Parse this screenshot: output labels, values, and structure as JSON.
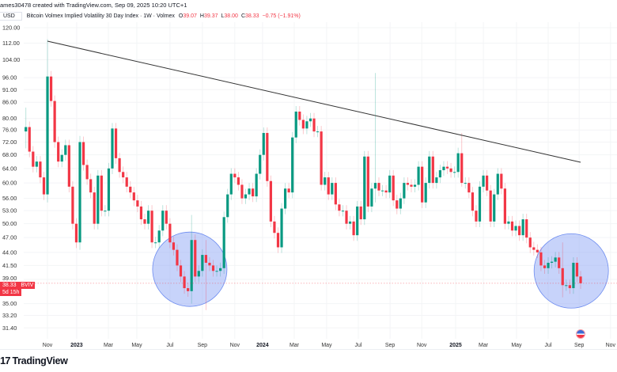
{
  "header": {
    "attribution": "ames30478 created with TradingView.com, Sep 09, 2025 10:20 UTC+1",
    "currency": "USD",
    "symbol_title": "Bitcoin Volmex Implied Volatility 30 Day Index · 1W · Volmex",
    "open_label": "O",
    "open": "39.07",
    "high_label": "H",
    "high": "39.37",
    "low_label": "L",
    "low": "38.00",
    "close_label": "C",
    "close": "38.33",
    "change": "−0.75 (−1.91%)"
  },
  "price_badge": {
    "price": "38.33",
    "ticker": "BVIV",
    "countdown": "5d 15h"
  },
  "footer": {
    "logo_mark": "17",
    "brand": "TradingView"
  },
  "colors": {
    "up": "#089981",
    "down": "#f23645",
    "trendline": "#333333",
    "highlight": "#8fa8f5"
  },
  "chart_data": {
    "type": "candlestick",
    "title": "Bitcoin Volmex Implied Volatility 30 Day Index · 1W · Volmex",
    "yscale": "log",
    "ylim": [
      31.4,
      120
    ],
    "y_ticks": [
      "120.00",
      "112.00",
      "104.00",
      "96.00",
      "91.00",
      "86.00",
      "80.00",
      "76.00",
      "72.00",
      "68.00",
      "64.00",
      "60.00",
      "56.00",
      "53.00",
      "50.00",
      "47.00",
      "44.00",
      "41.50",
      "39.00",
      "35.00",
      "33.20",
      "31.40"
    ],
    "x_ticks": [
      {
        "label": "Nov",
        "index": 6.0,
        "bold": false
      },
      {
        "label": "2023",
        "index": 14.1,
        "bold": true
      },
      {
        "label": "Mar",
        "index": 22.9,
        "bold": false
      },
      {
        "label": "May",
        "index": 30.8,
        "bold": false
      },
      {
        "label": "Jul",
        "index": 40.0,
        "bold": false
      },
      {
        "label": "Sep",
        "index": 49.0,
        "bold": false
      },
      {
        "label": "Nov",
        "index": 58.0,
        "bold": false
      },
      {
        "label": "2024",
        "index": 65.7,
        "bold": true
      },
      {
        "label": "Mar",
        "index": 74.5,
        "bold": false
      },
      {
        "label": "May",
        "index": 83.5,
        "bold": false
      },
      {
        "label": "Jul",
        "index": 92.3,
        "bold": false
      },
      {
        "label": "Sep",
        "index": 101.1,
        "bold": false
      },
      {
        "label": "Nov",
        "index": 109.9,
        "bold": false
      },
      {
        "label": "2025",
        "index": 119.3,
        "bold": true
      },
      {
        "label": "Mar",
        "index": 127.0,
        "bold": false
      },
      {
        "label": "May",
        "index": 136.2,
        "bold": false
      },
      {
        "label": "Jul",
        "index": 145.0,
        "bold": false
      },
      {
        "label": "Sep",
        "index": 153.6,
        "bold": false
      },
      {
        "label": "Nov",
        "index": 162.3,
        "bold": false
      }
    ],
    "first_open": 75.5,
    "closes": [
      77,
      69,
      64.5,
      66,
      61.5,
      57,
      96.5,
      86.5,
      72,
      66,
      68,
      71,
      59,
      50,
      46,
      72,
      65,
      61,
      57.5,
      50,
      62,
      53,
      53,
      64,
      76.5,
      67,
      63,
      61.5,
      59,
      57.5,
      55.5,
      54,
      51,
      50,
      53,
      46,
      46,
      48.5,
      53,
      50,
      46,
      44.5,
      41.5,
      39.5,
      37.5,
      37,
      46.5,
      39.5,
      40.5,
      43.5,
      42,
      41.5,
      40.5,
      40.5,
      41,
      51.5,
      57,
      62.5,
      61.5,
      59.5,
      56,
      57,
      58.5,
      56.5,
      62.5,
      68,
      75,
      60.5,
      50.5,
      48,
      45,
      53.5,
      58.5,
      57.5,
      73.5,
      82.5,
      79.5,
      76.5,
      79,
      80,
      75.5,
      75.5,
      59.5,
      61.5,
      57,
      60,
      54.5,
      53,
      53,
      50,
      50.5,
      47.5,
      54,
      51,
      67.5,
      54,
      58.5,
      60,
      58,
      58,
      57.5,
      62,
      55.5,
      53.5,
      56,
      60,
      59.5,
      59,
      59.5,
      64.5,
      55,
      60,
      67.5,
      60,
      61.5,
      63.5,
      64.5,
      64,
      63,
      63,
      68.5,
      60,
      60,
      57.5,
      53,
      50.5,
      59,
      62,
      58,
      50.5,
      57,
      62.5,
      58.5,
      50,
      50.5,
      48.5,
      49.5,
      47.5,
      51,
      47,
      45,
      44.5,
      44,
      41.5,
      41,
      42,
      42.2,
      43,
      41,
      38,
      38,
      37.5,
      42,
      39.5,
      38.33
    ],
    "wick_overrides": [
      {
        "index": 0,
        "high": 84,
        "low": 70
      },
      {
        "index": 6,
        "high": 114,
        "low": 55
      },
      {
        "index": 15,
        "high": 74,
        "low": 44.5
      },
      {
        "index": 46,
        "high": 52,
        "low": 35
      },
      {
        "index": 50,
        "high": 46.5,
        "low": 34
      },
      {
        "index": 97,
        "high": 98,
        "low": 55
      },
      {
        "index": 121,
        "high": 75,
        "low": 59
      },
      {
        "index": 149,
        "high": 46,
        "low": 36
      }
    ],
    "trendline": {
      "from_index": 6,
      "from_value": 113,
      "to_index": 154,
      "to_value": 65.8
    },
    "highlights": [
      {
        "center_index": 45.5,
        "center_value": 40.8
      },
      {
        "center_index": 151.4,
        "center_value": 40.5
      }
    ],
    "last_price": 38.33
  }
}
